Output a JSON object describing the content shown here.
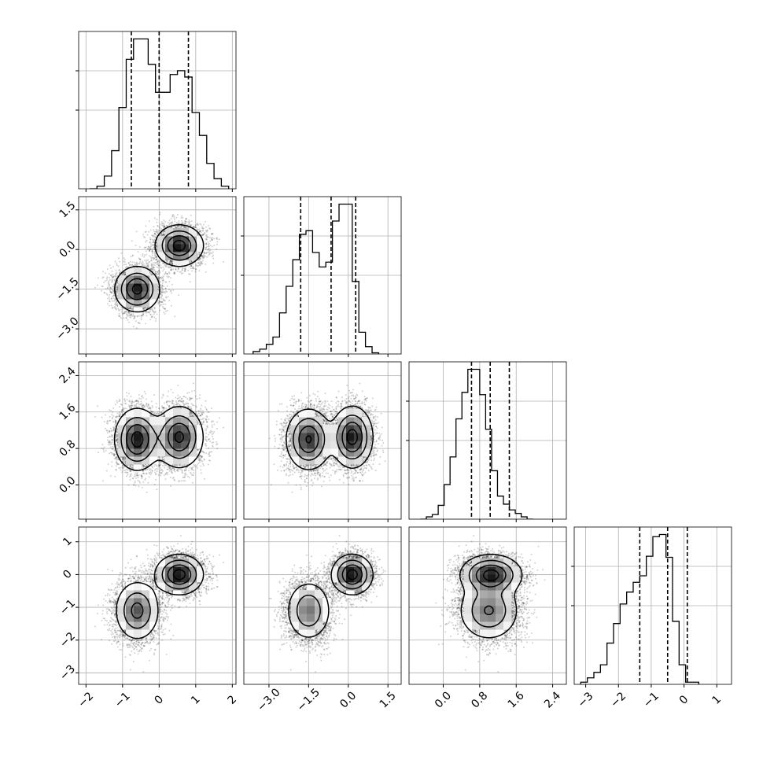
{
  "chart_data": {
    "type": "corner",
    "grid": true,
    "ticks": {
      "p0": [
        -2,
        -1,
        0,
        1,
        2
      ],
      "p1": [
        -3.0,
        -1.5,
        0.0,
        1.5
      ],
      "p2": [
        0.0,
        0.8,
        1.6,
        2.4
      ],
      "p3": [
        -3,
        -2,
        -1,
        0,
        1
      ]
    },
    "tick_labels": {
      "p0": [
        "−2",
        "−1",
        "0",
        "1",
        "2"
      ],
      "p1": [
        "−3.0",
        "−1.5",
        "0.0",
        "1.5"
      ],
      "p2": [
        "0.0",
        "0.8",
        "1.6",
        "2.4"
      ],
      "p3": [
        "−3",
        "−2",
        "−1",
        "0",
        "1"
      ]
    },
    "ranges": {
      "p0": [
        -2.2,
        2.1
      ],
      "p1": [
        -3.95,
        2.0
      ],
      "p2": [
        -0.75,
        2.7
      ],
      "p3": [
        -3.35,
        1.45
      ]
    },
    "quantiles": {
      "p0": [
        -0.76,
        0.0,
        0.8
      ],
      "p1": [
        -1.8,
        -0.65,
        0.28
      ],
      "p2": [
        0.62,
        1.03,
        1.45
      ],
      "p3": [
        -1.35,
        -0.5,
        0.1
      ]
    },
    "histograms": {
      "p0": {
        "start": -1.9,
        "step": 0.2,
        "counts": [
          0,
          2,
          10,
          30,
          64,
          102,
          118,
          118,
          98,
          76,
          76,
          90,
          93,
          88,
          60,
          42,
          20,
          8,
          2
        ]
      },
      "p1": {
        "start": -3.6,
        "step": 0.25,
        "counts": [
          2,
          4,
          8,
          14,
          34,
          56,
          78,
          99,
          102,
          84,
          72,
          76,
          110,
          124,
          124,
          60,
          18,
          6,
          1
        ]
      },
      "p2": {
        "start": -0.5,
        "step": 0.13,
        "counts": [
          0,
          2,
          4,
          12,
          30,
          54,
          87,
          110,
          130,
          130,
          108,
          78,
          42,
          20,
          13,
          8,
          5,
          2,
          0
        ]
      },
      "p3": {
        "start": -3.15,
        "step": 0.2,
        "counts": [
          2,
          6,
          11,
          18,
          38,
          56,
          74,
          85,
          94,
          100,
          118,
          136,
          138,
          117,
          58,
          18,
          2,
          2
        ]
      }
    },
    "modes": [
      {
        "weight": 0.5,
        "mean": [
          -0.6,
          -1.5,
          1.0,
          -1.1
        ],
        "sd": [
          0.3,
          0.42,
          0.33,
          0.45
        ]
      },
      {
        "weight": 0.5,
        "mean": [
          0.55,
          0.15,
          1.05,
          0.0
        ],
        "sd": [
          0.32,
          0.38,
          0.33,
          0.3
        ]
      }
    ],
    "corr_across_modes": [
      [
        1.0,
        0.0,
        0.0,
        0.0
      ],
      [
        0.0,
        1.0,
        0.0,
        0.0
      ],
      [
        0.0,
        0.0,
        1.0,
        -0.1
      ],
      [
        0.0,
        0.0,
        -0.1,
        1.0
      ]
    ]
  }
}
